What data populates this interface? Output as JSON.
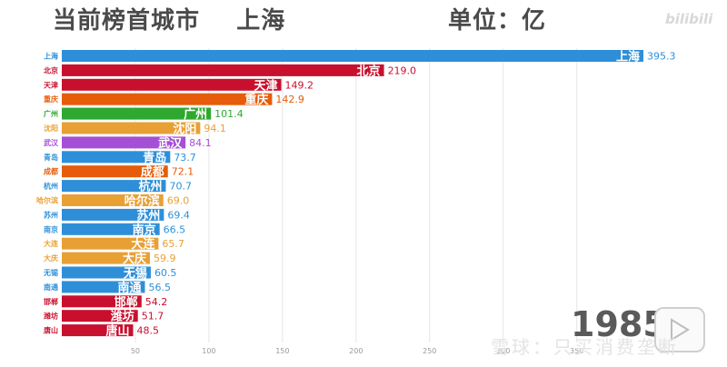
{
  "header": {
    "title_left": "当前榜首城市    上海",
    "title_right": "单位：亿",
    "logo": "bilibili"
  },
  "year": "1985",
  "watermark": "雪球：只买消费垄断",
  "colors": {
    "blue": "#2e8fd8",
    "red": "#c8102e",
    "orange": "#e65c0a",
    "green": "#2fa82f",
    "gold": "#e8a035",
    "purple": "#a54fd6"
  },
  "chart_data": {
    "type": "bar",
    "orientation": "horizontal",
    "categories": [
      "上海",
      "北京",
      "天津",
      "重庆",
      "广州",
      "沈阳",
      "武汉",
      "青岛",
      "成都",
      "杭州",
      "哈尔滨",
      "苏州",
      "南京",
      "大连",
      "大庆",
      "无锡",
      "南通",
      "邯郸",
      "潍坊",
      "唐山"
    ],
    "values": [
      395.3,
      219.0,
      149.2,
      142.9,
      101.4,
      94.1,
      84.1,
      73.7,
      72.1,
      70.7,
      69.0,
      69.4,
      66.5,
      65.7,
      59.9,
      60.5,
      56.5,
      54.2,
      51.7,
      48.5
    ],
    "value_labels": [
      "395.3",
      "219.0",
      "149.2",
      "142.9",
      "101.4",
      "94.1",
      "84.1",
      "73.7",
      "72.1",
      "70.7",
      "69.0",
      "69.4",
      "66.5",
      "65.7",
      "59.9",
      "60.5",
      "56.5",
      "54.2",
      "51.7",
      "48.5"
    ],
    "colors": [
      "#2e8fd8",
      "#c8102e",
      "#c8102e",
      "#e65c0a",
      "#2fa82f",
      "#e8a035",
      "#a54fd6",
      "#2e8fd8",
      "#e65c0a",
      "#2e8fd8",
      "#e8a035",
      "#2e8fd8",
      "#2e8fd8",
      "#e8a035",
      "#e8a035",
      "#2e8fd8",
      "#2e8fd8",
      "#c8102e",
      "#c8102e",
      "#c8102e"
    ],
    "x_ticks": [
      50,
      100,
      150,
      200,
      250,
      300,
      350
    ],
    "tick_labels": [
      "50",
      "100",
      "150",
      "200",
      "250",
      "300",
      "350"
    ],
    "xlim": [
      0,
      395.3
    ],
    "grid": true
  }
}
